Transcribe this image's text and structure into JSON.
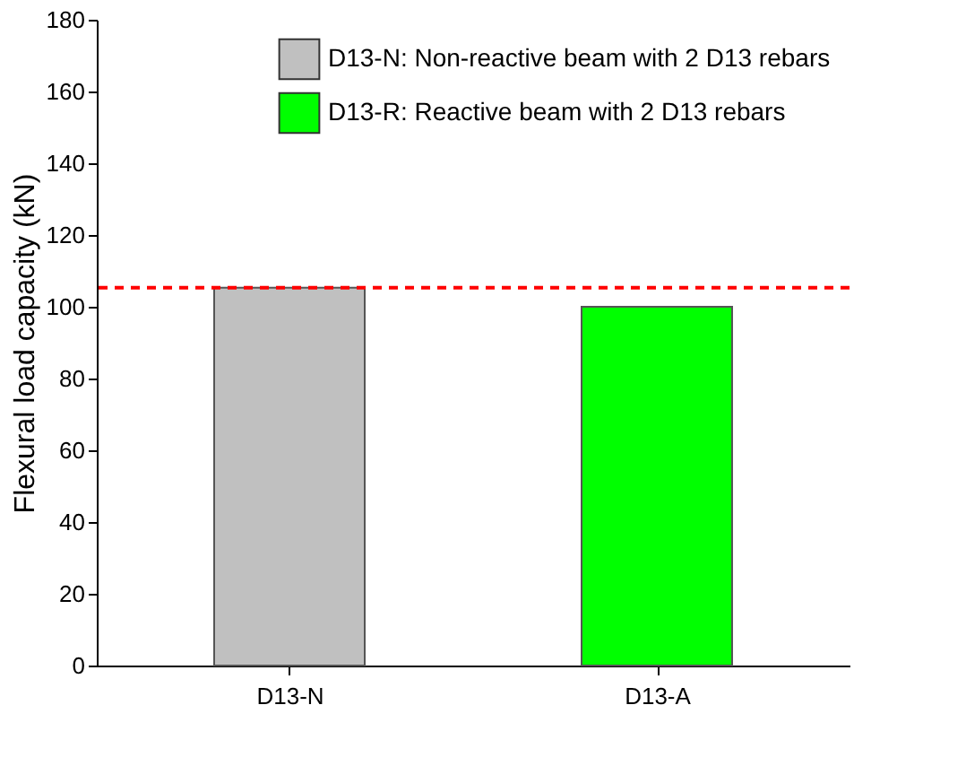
{
  "chart_data": {
    "type": "bar",
    "ylabel": "Flexural load capacity (kN)",
    "categories": [
      "D13-N",
      "D13-A"
    ],
    "series": [
      {
        "name": "D13-N: Non-reactive beam with 2 D13 rebars",
        "color": "#c0c0c0",
        "values": [
          105.3,
          null
        ]
      },
      {
        "name": "D13-R: Reactive beam with 2 D13 rebars",
        "color": "#00ff00",
        "values": [
          null,
          100
        ]
      }
    ],
    "ylim": [
      0,
      180
    ],
    "yticks": [
      0,
      20,
      40,
      60,
      80,
      100,
      120,
      140,
      160,
      180
    ],
    "grid": false,
    "legend": "top right",
    "ref_lines": [
      {
        "axis": "y",
        "value": 105.3,
        "color": "#ff0000",
        "line_style": "dashed"
      }
    ]
  }
}
